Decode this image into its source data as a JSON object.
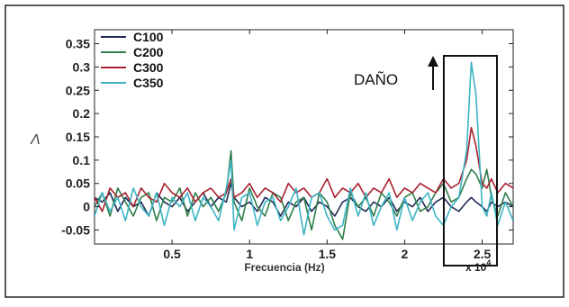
{
  "chart_data": {
    "type": "line",
    "xlabel": "Frecuencia (Hz)",
    "ylabel": "Λ",
    "x_multiplier_label": "x 10",
    "x_multiplier_exponent": "4",
    "xlim": [
      0,
      2.7
    ],
    "ylim": [
      -0.08,
      0.38
    ],
    "x_ticks": [
      0.5,
      1,
      1.5,
      2,
      2.5
    ],
    "x_tick_labels": [
      "0.5",
      "1",
      "1.5",
      "2",
      "2.5"
    ],
    "y_ticks": [
      -0.05,
      0,
      0.05,
      0.1,
      0.15,
      0.2,
      0.25,
      0.3,
      0.35
    ],
    "y_tick_labels": [
      "-0.05",
      "0",
      "0.05",
      "0.1",
      "0.15",
      "0.2",
      "0.25",
      "0.3",
      "0.35"
    ],
    "grid": false,
    "legend_position": "top-left",
    "annotation": {
      "text": "DAÑO",
      "box_x_range": [
        2.27,
        2.7
      ],
      "box_y_range": [
        -0.08,
        0.38
      ]
    },
    "series": [
      {
        "name": "C100",
        "color": "#1f2a55",
        "x": [
          0.0,
          0.05,
          0.1,
          0.15,
          0.2,
          0.25,
          0.3,
          0.35,
          0.4,
          0.45,
          0.5,
          0.55,
          0.6,
          0.65,
          0.7,
          0.75,
          0.8,
          0.85,
          0.88,
          0.9,
          0.95,
          1.0,
          1.05,
          1.1,
          1.15,
          1.2,
          1.25,
          1.3,
          1.35,
          1.4,
          1.45,
          1.5,
          1.55,
          1.6,
          1.65,
          1.7,
          1.75,
          1.8,
          1.85,
          1.9,
          1.95,
          2.0,
          2.05,
          2.1,
          2.15,
          2.2,
          2.25,
          2.3,
          2.35,
          2.4,
          2.43,
          2.46,
          2.5,
          2.53,
          2.56,
          2.6,
          2.65,
          2.7
        ],
        "y": [
          0.02,
          0.01,
          0.03,
          -0.01,
          0.02,
          0.0,
          0.01,
          -0.02,
          0.03,
          0.01,
          0.0,
          0.02,
          -0.01,
          0.01,
          0.03,
          0.0,
          0.02,
          0.01,
          0.05,
          0.02,
          0.0,
          0.01,
          -0.01,
          0.02,
          0.01,
          -0.02,
          0.01,
          0.0,
          0.02,
          -0.01,
          0.01,
          0.0,
          -0.02,
          0.01,
          0.02,
          0.0,
          -0.01,
          0.01,
          0.0,
          0.02,
          -0.01,
          0.01,
          0.0,
          0.02,
          -0.01,
          0.01,
          0.02,
          0.0,
          -0.01,
          0.01,
          0.02,
          0.01,
          0.0,
          -0.01,
          0.01,
          0.0,
          0.01,
          0.0
        ]
      },
      {
        "name": "C200",
        "color": "#2f7d4a",
        "x": [
          0.0,
          0.05,
          0.1,
          0.15,
          0.2,
          0.25,
          0.3,
          0.35,
          0.4,
          0.45,
          0.5,
          0.55,
          0.6,
          0.65,
          0.7,
          0.75,
          0.8,
          0.85,
          0.88,
          0.9,
          0.95,
          1.0,
          1.05,
          1.1,
          1.15,
          1.2,
          1.25,
          1.3,
          1.35,
          1.4,
          1.45,
          1.5,
          1.55,
          1.6,
          1.65,
          1.7,
          1.75,
          1.8,
          1.85,
          1.9,
          1.95,
          2.0,
          2.05,
          2.1,
          2.15,
          2.2,
          2.25,
          2.3,
          2.35,
          2.4,
          2.43,
          2.46,
          2.5,
          2.53,
          2.56,
          2.6,
          2.65,
          2.7
        ],
        "y": [
          0.0,
          0.03,
          -0.02,
          0.04,
          0.01,
          -0.02,
          0.02,
          0.03,
          -0.03,
          0.02,
          0.01,
          0.04,
          -0.02,
          0.03,
          0.0,
          0.02,
          -0.01,
          0.03,
          0.12,
          0.01,
          -0.03,
          0.04,
          0.0,
          -0.02,
          0.03,
          0.02,
          -0.03,
          0.01,
          0.02,
          -0.05,
          0.03,
          0.01,
          -0.04,
          -0.07,
          0.03,
          0.0,
          0.02,
          -0.02,
          0.03,
          0.01,
          -0.02,
          0.02,
          0.03,
          -0.01,
          0.0,
          0.03,
          0.05,
          0.01,
          0.02,
          0.06,
          0.08,
          0.07,
          0.04,
          0.08,
          0.02,
          -0.02,
          0.03,
          0.0
        ]
      },
      {
        "name": "C300",
        "color": "#a8202e",
        "x": [
          0.0,
          0.05,
          0.1,
          0.15,
          0.2,
          0.25,
          0.3,
          0.35,
          0.4,
          0.45,
          0.5,
          0.55,
          0.6,
          0.65,
          0.7,
          0.75,
          0.8,
          0.85,
          0.88,
          0.9,
          0.95,
          1.0,
          1.05,
          1.1,
          1.15,
          1.2,
          1.25,
          1.3,
          1.35,
          1.4,
          1.45,
          1.5,
          1.55,
          1.6,
          1.65,
          1.7,
          1.75,
          1.8,
          1.85,
          1.9,
          1.95,
          2.0,
          2.05,
          2.1,
          2.15,
          2.2,
          2.25,
          2.3,
          2.35,
          2.4,
          2.43,
          2.46,
          2.5,
          2.53,
          2.56,
          2.6,
          2.65,
          2.7
        ],
        "y": [
          0.02,
          -0.01,
          0.04,
          0.02,
          0.03,
          0.0,
          0.04,
          0.02,
          0.01,
          0.05,
          0.03,
          0.02,
          0.04,
          0.01,
          0.03,
          0.04,
          0.02,
          0.03,
          0.06,
          0.02,
          0.03,
          0.05,
          0.02,
          0.04,
          0.03,
          0.01,
          0.05,
          0.03,
          0.04,
          0.02,
          0.03,
          0.06,
          0.02,
          0.04,
          0.03,
          0.05,
          0.02,
          0.04,
          0.03,
          0.06,
          0.02,
          0.04,
          0.03,
          0.05,
          0.04,
          0.03,
          0.06,
          0.04,
          0.05,
          0.1,
          0.17,
          0.13,
          0.05,
          0.04,
          0.06,
          0.03,
          0.05,
          0.04
        ]
      },
      {
        "name": "C350",
        "color": "#3cb4c4",
        "x": [
          0.0,
          0.05,
          0.1,
          0.15,
          0.2,
          0.25,
          0.3,
          0.35,
          0.4,
          0.45,
          0.5,
          0.55,
          0.6,
          0.65,
          0.7,
          0.75,
          0.8,
          0.85,
          0.88,
          0.9,
          0.95,
          1.0,
          1.05,
          1.1,
          1.15,
          1.2,
          1.25,
          1.3,
          1.35,
          1.4,
          1.45,
          1.5,
          1.55,
          1.6,
          1.65,
          1.7,
          1.75,
          1.8,
          1.85,
          1.9,
          1.95,
          2.0,
          2.05,
          2.1,
          2.15,
          2.2,
          2.25,
          2.3,
          2.35,
          2.4,
          2.43,
          2.46,
          2.5,
          2.53,
          2.56,
          2.6,
          2.65,
          2.7
        ],
        "y": [
          -0.02,
          0.03,
          -0.01,
          0.02,
          -0.03,
          0.04,
          0.0,
          -0.02,
          0.03,
          -0.04,
          0.02,
          0.0,
          0.03,
          -0.03,
          0.02,
          0.0,
          -0.03,
          0.04,
          0.1,
          -0.05,
          0.02,
          0.03,
          -0.04,
          0.01,
          0.02,
          -0.03,
          0.0,
          0.04,
          -0.06,
          0.02,
          0.03,
          -0.02,
          -0.05,
          -0.04,
          0.04,
          -0.02,
          0.03,
          -0.04,
          0.0,
          0.03,
          -0.05,
          0.02,
          -0.03,
          0.01,
          0.03,
          -0.02,
          -0.04,
          0.0,
          0.02,
          0.12,
          0.31,
          0.24,
          0.0,
          -0.02,
          0.03,
          -0.04,
          0.01,
          -0.03
        ]
      }
    ]
  }
}
